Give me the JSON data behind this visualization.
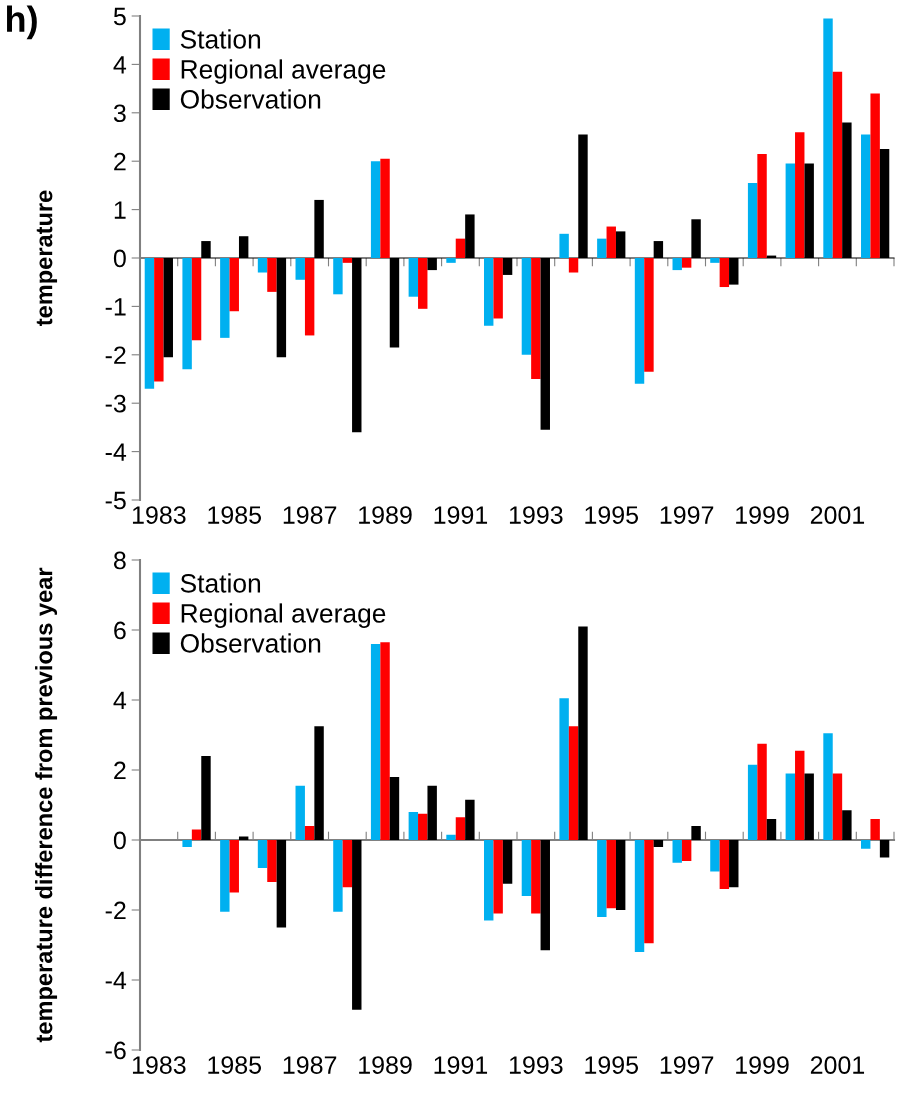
{
  "chart_data": [
    {
      "type": "bar",
      "ylabel": "temperature",
      "annotations": [
        "h)"
      ],
      "categories": [
        "1983",
        null,
        "1985",
        null,
        "1987",
        null,
        "1989",
        null,
        "1991",
        null,
        "1993",
        null,
        "1995",
        null,
        "1997",
        null,
        "1999",
        null,
        "2001",
        null
      ],
      "series": [
        {
          "name": "Station",
          "color": "#00b0f0",
          "values": [
            -2.7,
            -2.3,
            -1.65,
            -0.3,
            -0.45,
            -0.75,
            2.0,
            -0.8,
            -0.1,
            -1.4,
            -2.0,
            0.5,
            0.4,
            -2.6,
            -0.25,
            -0.1,
            1.55,
            1.95,
            4.95,
            2.55
          ]
        },
        {
          "name": "Regional average",
          "color": "#ff0000",
          "values": [
            -2.55,
            -1.7,
            -1.1,
            -0.7,
            -1.6,
            -0.1,
            2.05,
            -1.05,
            0.4,
            -1.25,
            -2.5,
            -0.3,
            0.65,
            -2.35,
            -0.2,
            -0.6,
            2.15,
            2.6,
            3.85,
            3.4
          ]
        },
        {
          "name": "Observation",
          "color": "#000000",
          "values": [
            -2.05,
            0.35,
            0.45,
            -2.05,
            1.2,
            -3.6,
            -1.85,
            -0.25,
            0.9,
            -0.35,
            -3.55,
            2.55,
            0.55,
            0.35,
            0.8,
            -0.55,
            0.05,
            1.95,
            2.8,
            2.25
          ]
        }
      ],
      "ylim": [
        -5,
        5
      ],
      "yticks": [
        -5,
        -4,
        -3,
        -2,
        -1,
        0,
        1,
        2,
        3,
        4,
        5
      ],
      "legend": "top left"
    },
    {
      "type": "bar",
      "ylabel": "temperature difference from previous year",
      "categories": [
        "1983",
        null,
        "1985",
        null,
        "1987",
        null,
        "1989",
        null,
        "1991",
        null,
        "1993",
        null,
        "1995",
        null,
        "1997",
        null,
        "1999",
        null,
        "2001",
        null
      ],
      "series": [
        {
          "name": "Station",
          "color": "#00b0f0",
          "values": [
            null,
            -0.2,
            -2.05,
            -0.8,
            1.55,
            -2.05,
            5.6,
            0.8,
            0.15,
            -2.3,
            -1.6,
            4.05,
            -2.2,
            -3.2,
            -0.65,
            -0.9,
            2.15,
            1.9,
            3.05,
            -0.25
          ]
        },
        {
          "name": "Regional average",
          "color": "#ff0000",
          "values": [
            null,
            0.3,
            -1.5,
            -1.2,
            0.4,
            -1.35,
            5.65,
            0.75,
            0.65,
            -2.1,
            -2.1,
            3.25,
            -1.95,
            -2.95,
            -0.6,
            -1.4,
            2.75,
            2.55,
            1.9,
            0.6
          ]
        },
        {
          "name": "Observation",
          "color": "#000000",
          "values": [
            null,
            2.4,
            0.1,
            -2.5,
            3.25,
            -4.85,
            1.8,
            1.55,
            1.15,
            -1.25,
            -3.15,
            6.1,
            -2.0,
            -0.2,
            0.4,
            -1.35,
            0.6,
            1.9,
            0.85,
            -0.5
          ]
        }
      ],
      "ylim": [
        -6,
        8
      ],
      "yticks": [
        -6,
        -4,
        -2,
        0,
        2,
        4,
        6,
        8
      ],
      "legend": "top left"
    }
  ]
}
